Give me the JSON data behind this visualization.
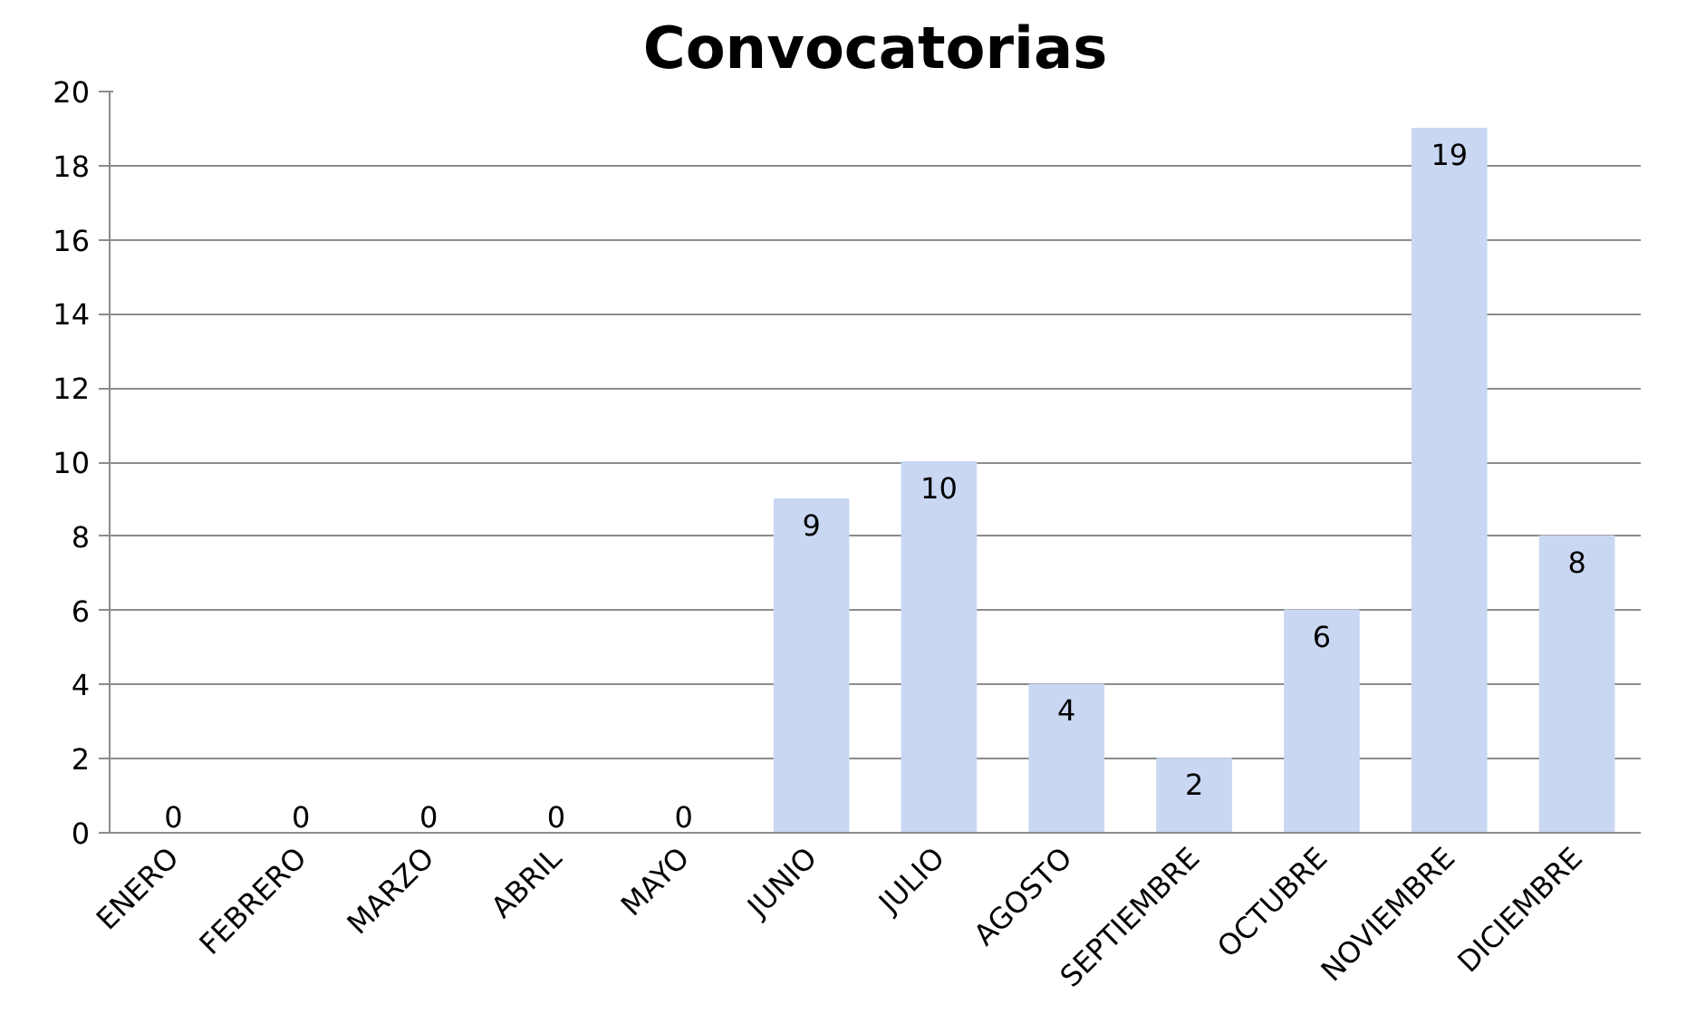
{
  "chart_data": {
    "type": "bar",
    "title": "Convocatorias",
    "categories": [
      "ENERO",
      "FEBRERO",
      "MARZO",
      "ABRIL",
      "MAYO",
      "JUNIO",
      "JULIO",
      "AGOSTO",
      "SEPTIEMBRE",
      "OCTUBRE",
      "NOVIEMBRE",
      "DICIEMBRE"
    ],
    "values": [
      0,
      0,
      0,
      0,
      0,
      9,
      10,
      4,
      2,
      6,
      19,
      8
    ],
    "color": "#c9d7f2",
    "ylim": [
      0,
      20
    ],
    "yticks": [
      0,
      2,
      4,
      6,
      8,
      10,
      12,
      14,
      16,
      18,
      20
    ],
    "grid": "y",
    "data_labels": true
  }
}
